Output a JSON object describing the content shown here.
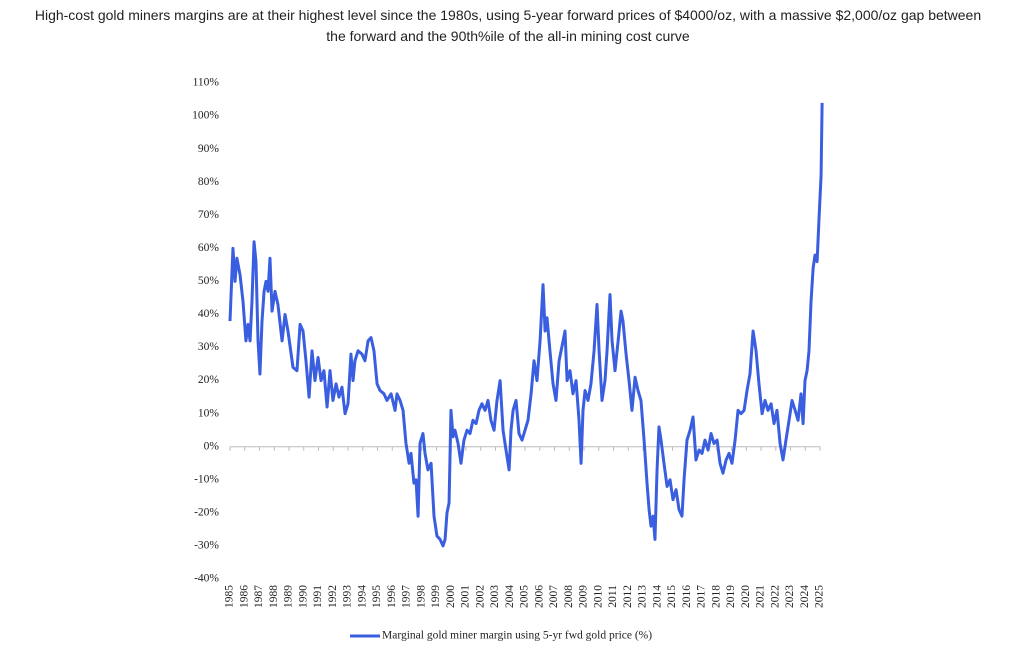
{
  "chart_data": {
    "type": "line",
    "title": [
      "High-cost gold miners margins are at their highest level since the 1980s, using 5-year forward prices of $4000/oz, with a massive $2,000/oz gap between",
      "the forward and the 90th%ile of the all-in mining cost curve"
    ],
    "x": [
      1985.0,
      1985.2,
      1985.34,
      1985.47,
      1985.68,
      1985.88,
      1986.08,
      1986.22,
      1986.36,
      1986.49,
      1986.63,
      1986.76,
      1986.9,
      1987.03,
      1987.17,
      1987.31,
      1987.44,
      1987.58,
      1987.71,
      1987.85,
      1988.05,
      1988.25,
      1988.53,
      1988.73,
      1988.93,
      1989.27,
      1989.54,
      1989.75,
      1989.95,
      1990.15,
      1990.36,
      1990.56,
      1990.76,
      1990.97,
      1991.17,
      1991.37,
      1991.58,
      1991.78,
      1991.98,
      1992.19,
      1992.39,
      1992.59,
      1992.8,
      1993.0,
      1993.2,
      1993.34,
      1993.47,
      1993.68,
      1993.95,
      1994.15,
      1994.36,
      1994.56,
      1994.76,
      1994.97,
      1995.17,
      1995.44,
      1995.64,
      1995.92,
      1996.19,
      1996.32,
      1996.53,
      1996.73,
      1996.93,
      1997.14,
      1997.27,
      1997.47,
      1997.61,
      1997.75,
      1997.88,
      1998.08,
      1998.22,
      1998.42,
      1998.63,
      1998.83,
      1999.03,
      1999.24,
      1999.44,
      1999.58,
      1999.71,
      1999.85,
      1999.98,
      2000.12,
      2000.25,
      2000.46,
      2000.66,
      2000.86,
      2001.07,
      2001.27,
      2001.47,
      2001.68,
      2001.88,
      2002.08,
      2002.29,
      2002.49,
      2002.69,
      2002.9,
      2003.1,
      2003.31,
      2003.51,
      2003.71,
      2003.92,
      2004.05,
      2004.19,
      2004.39,
      2004.59,
      2004.8,
      2005.0,
      2005.2,
      2005.41,
      2005.61,
      2005.81,
      2006.02,
      2006.22,
      2006.36,
      2006.49,
      2006.69,
      2006.9,
      2007.1,
      2007.31,
      2007.58,
      2007.71,
      2007.85,
      2008.05,
      2008.25,
      2008.46,
      2008.66,
      2008.8,
      2008.93,
      2009.07,
      2009.27,
      2009.47,
      2009.68,
      2009.88,
      2010.02,
      2010.22,
      2010.42,
      2010.56,
      2010.76,
      2010.9,
      2011.1,
      2011.31,
      2011.51,
      2011.64,
      2011.85,
      2012.05,
      2012.25,
      2012.46,
      2012.66,
      2012.86,
      2013.07,
      2013.27,
      2013.41,
      2013.54,
      2013.68,
      2013.81,
      2013.95,
      2014.08,
      2014.22,
      2014.42,
      2014.63,
      2014.83,
      2015.03,
      2015.24,
      2015.44,
      2015.64,
      2015.78,
      2015.98,
      2016.19,
      2016.39,
      2016.59,
      2016.8,
      2017.0,
      2017.2,
      2017.41,
      2017.61,
      2017.81,
      2018.02,
      2018.22,
      2018.42,
      2018.63,
      2018.83,
      2019.03,
      2019.24,
      2019.44,
      2019.64,
      2019.85,
      2020.05,
      2020.25,
      2020.46,
      2020.66,
      2020.86,
      2021.07,
      2021.27,
      2021.47,
      2021.68,
      2021.88,
      2022.08,
      2022.29,
      2022.49,
      2022.69,
      2022.9,
      2023.1,
      2023.31,
      2023.51,
      2023.71,
      2023.85,
      2023.98,
      2024.12,
      2024.25,
      2024.39,
      2024.53,
      2024.66,
      2024.8,
      2024.93,
      2025.07,
      2025.14
    ],
    "series": [
      {
        "name": "Marginal gold miner margin using 5-yr fwd gold price (%)",
        "color": "#3a5ee0",
        "values": [
          38,
          60,
          50,
          57,
          52,
          44,
          32,
          37,
          32,
          44,
          62,
          56,
          32,
          22,
          38,
          47,
          50,
          47,
          57,
          41,
          47,
          43,
          32,
          40,
          35,
          24,
          23,
          37,
          35,
          26,
          15,
          29,
          20,
          27,
          20,
          23,
          12,
          23,
          14,
          19,
          15,
          18,
          10,
          13,
          28,
          20,
          26,
          29,
          28,
          26,
          32,
          33,
          29,
          19,
          17,
          16,
          14,
          16,
          11,
          16,
          14,
          11,
          1,
          -5,
          -2,
          -11,
          -10,
          -21,
          1,
          4,
          -2,
          -7,
          -5,
          -21,
          -27,
          -28,
          -30,
          -28,
          -20,
          -17,
          11,
          3,
          5,
          1,
          -5,
          2,
          5,
          4,
          8,
          7,
          11,
          13,
          11,
          14,
          8,
          5,
          14,
          20,
          5,
          -1,
          -7,
          5,
          11,
          14,
          4,
          2,
          5,
          8,
          16,
          26,
          20,
          32,
          49,
          35,
          39,
          29,
          19,
          14,
          26,
          32,
          35,
          20,
          23,
          16,
          20,
          8,
          -5,
          11,
          17,
          14,
          19,
          29,
          43,
          29,
          14,
          20,
          29,
          46,
          32,
          23,
          32,
          41,
          38,
          28,
          20,
          11,
          21,
          17,
          14,
          2,
          -11,
          -19,
          -24,
          -21,
          -28,
          -7,
          6,
          2,
          -5,
          -12,
          -10,
          -16,
          -13,
          -19,
          -21,
          -10,
          2,
          5,
          9,
          -4,
          -1,
          -2,
          2,
          -1,
          4,
          1,
          2,
          -5,
          -8,
          -4,
          -2,
          -5,
          2,
          11,
          10,
          11,
          17,
          22,
          35,
          29,
          19,
          10,
          14,
          11,
          13,
          7,
          11,
          1,
          -4,
          2,
          8,
          14,
          11,
          8,
          16,
          7,
          20,
          23,
          29,
          44,
          54,
          58,
          56,
          69,
          82,
          104
        ]
      }
    ],
    "xlim": [
      1985,
      2025.2
    ],
    "xticks": [
      1985,
      1986,
      1987,
      1988,
      1989,
      1990,
      1991,
      1992,
      1993,
      1994,
      1995,
      1996,
      1997,
      1998,
      1999,
      2000,
      2001,
      2002,
      2003,
      2004,
      2005,
      2006,
      2007,
      2008,
      2009,
      2010,
      2011,
      2012,
      2013,
      2014,
      2015,
      2016,
      2017,
      2018,
      2019,
      2020,
      2021,
      2022,
      2023,
      2024,
      2025
    ],
    "ylim": [
      -40,
      110
    ],
    "yticks": [
      {
        "value": -40,
        "label": "-40%"
      },
      {
        "value": -30,
        "label": "-30%"
      },
      {
        "value": -20,
        "label": "-20%"
      },
      {
        "value": -10,
        "label": "-10%"
      },
      {
        "value": 0,
        "label": "0%"
      },
      {
        "value": 10,
        "label": "10%"
      },
      {
        "value": 20,
        "label": "20%"
      },
      {
        "value": 30,
        "label": "30%"
      },
      {
        "value": 40,
        "label": "40%"
      },
      {
        "value": 50,
        "label": "50%"
      },
      {
        "value": 60,
        "label": "60%"
      },
      {
        "value": 70,
        "label": "70%"
      },
      {
        "value": 80,
        "label": "80%"
      },
      {
        "value": 90,
        "label": "90%"
      },
      {
        "value": 100,
        "label": "100%"
      },
      {
        "value": 110,
        "label": "110%"
      }
    ],
    "grid": false,
    "legend": "bottom"
  }
}
